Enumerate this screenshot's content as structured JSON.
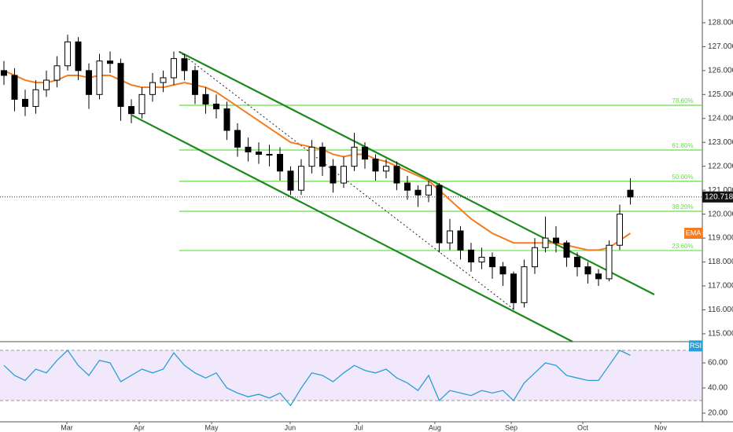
{
  "chart_data": {
    "type": "candlestick",
    "xlim": [
      -0.37,
      65.78
    ],
    "xticks": [
      {
        "value": 5.93,
        "label": "Mar"
      },
      {
        "value": 12.74,
        "label": "Apr"
      },
      {
        "value": 19.56,
        "label": "May"
      },
      {
        "value": 26.96,
        "label": "Jun"
      },
      {
        "value": 33.41,
        "label": "Jul"
      },
      {
        "value": 40.59,
        "label": "Aug"
      },
      {
        "value": 47.78,
        "label": "Sep"
      },
      {
        "value": 54.52,
        "label": "Oct"
      },
      {
        "value": 61.85,
        "label": "Nov"
      }
    ],
    "ylim": [
      114.67,
      128.95
    ],
    "yticks": [
      {
        "value": 115,
        "label": "115.000"
      },
      {
        "value": 116,
        "label": "116.000"
      },
      {
        "value": 117,
        "label": "117.000"
      },
      {
        "value": 118,
        "label": "118.000"
      },
      {
        "value": 119,
        "label": "119.000"
      },
      {
        "value": 120,
        "label": "120.000"
      },
      {
        "value": 121,
        "label": "121.000"
      },
      {
        "value": 122,
        "label": "122.000"
      },
      {
        "value": 123,
        "label": "123.000"
      },
      {
        "value": 124,
        "label": "124.000"
      },
      {
        "value": 125,
        "label": "125.000"
      },
      {
        "value": 126,
        "label": "126.000"
      },
      {
        "value": 127,
        "label": "127.000"
      },
      {
        "value": 128,
        "label": "128.000"
      }
    ],
    "open": [
      126.0,
      125.8,
      124.8,
      124.5,
      125.2,
      125.6,
      126.2,
      127.2,
      126.0,
      125.0,
      126.4,
      126.3,
      124.5,
      124.2,
      125.0,
      125.5,
      125.7,
      126.5,
      126.0,
      125.0,
      124.6,
      124.4,
      123.5,
      122.8,
      122.6,
      122.5,
      122.5,
      121.8,
      121.0,
      122.0,
      122.8,
      122.0,
      121.3,
      122.0,
      122.8,
      122.3,
      121.8,
      122.0,
      121.3,
      121.0,
      120.8,
      121.2,
      118.8,
      119.3,
      118.5,
      118.0,
      118.2,
      117.8,
      117.5,
      116.3,
      117.8,
      118.6,
      119.0,
      118.8,
      118.2,
      117.8,
      117.5,
      117.3,
      118.7,
      121.0
    ],
    "high": [
      126.4,
      126.1,
      125.2,
      125.6,
      126.0,
      126.6,
      127.5,
      127.4,
      126.3,
      126.7,
      126.8,
      126.5,
      124.8,
      125.3,
      125.9,
      126.0,
      126.8,
      126.7,
      126.2,
      125.3,
      125.0,
      124.7,
      123.8,
      123.2,
      123.0,
      122.9,
      122.8,
      122.0,
      122.3,
      123.1,
      123.0,
      122.3,
      122.4,
      123.4,
      123.0,
      122.5,
      122.3,
      122.2,
      121.6,
      121.2,
      121.4,
      121.3,
      119.8,
      119.5,
      118.8,
      118.6,
      118.4,
      118.0,
      117.6,
      118.1,
      119.0,
      119.9,
      119.5,
      118.9,
      118.4,
      118.0,
      117.7,
      118.9,
      120.4,
      121.5
    ],
    "low": [
      125.4,
      124.3,
      124.1,
      124.2,
      124.9,
      125.3,
      126.0,
      125.6,
      124.4,
      124.8,
      125.9,
      123.9,
      123.8,
      124.0,
      124.7,
      125.1,
      125.4,
      125.6,
      124.6,
      124.2,
      124.0,
      123.1,
      122.4,
      122.2,
      122.1,
      122.0,
      121.4,
      120.8,
      120.8,
      121.7,
      121.6,
      120.9,
      121.1,
      121.8,
      121.9,
      121.4,
      121.5,
      121.0,
      120.6,
      120.3,
      120.5,
      118.4,
      118.5,
      118.1,
      117.6,
      117.7,
      117.3,
      117.0,
      116.0,
      116.1,
      117.5,
      118.4,
      118.4,
      117.8,
      117.4,
      117.1,
      117.0,
      117.2,
      118.5,
      120.4
    ],
    "close": [
      125.8,
      124.8,
      124.5,
      125.2,
      125.6,
      126.2,
      127.2,
      126.0,
      125.0,
      126.4,
      126.3,
      124.5,
      124.2,
      125.0,
      125.5,
      125.7,
      126.5,
      126.0,
      125.0,
      124.6,
      124.4,
      123.5,
      122.8,
      122.6,
      122.5,
      122.5,
      121.8,
      121.0,
      122.0,
      122.8,
      122.0,
      121.3,
      122.0,
      122.8,
      122.3,
      121.8,
      122.0,
      121.3,
      121.0,
      120.8,
      121.2,
      118.8,
      119.3,
      118.5,
      118.0,
      118.2,
      117.8,
      117.5,
      116.3,
      117.8,
      118.6,
      119.0,
      118.8,
      118.2,
      117.8,
      117.5,
      117.3,
      118.7,
      120.0,
      120.718
    ],
    "up_color": "#ffffff",
    "down_color": "#000000",
    "ema": {
      "name": "EMA",
      "color": "#f57c1f",
      "values": [
        126.0,
        125.8,
        125.6,
        125.5,
        125.5,
        125.6,
        125.8,
        125.8,
        125.7,
        125.8,
        125.8,
        125.6,
        125.4,
        125.3,
        125.3,
        125.3,
        125.4,
        125.5,
        125.4,
        125.3,
        125.1,
        124.8,
        124.5,
        124.2,
        123.9,
        123.6,
        123.3,
        123.0,
        122.9,
        122.8,
        122.7,
        122.5,
        122.4,
        122.5,
        122.5,
        122.3,
        122.2,
        122.0,
        121.8,
        121.6,
        121.4,
        121.0,
        120.6,
        120.2,
        119.8,
        119.5,
        119.2,
        119.0,
        118.8,
        118.8,
        118.8,
        118.8,
        118.8,
        118.7,
        118.6,
        118.5,
        118.5,
        118.6,
        118.9,
        119.2
      ]
    },
    "fib_color": "#66dd44",
    "fib_levels": [
      {
        "label": "78.60%",
        "price": 124.55
      },
      {
        "label": "61.80%",
        "price": 122.68
      },
      {
        "label": "50.00%",
        "price": 121.37
      },
      {
        "label": "38.20%",
        "price": 120.12
      },
      {
        "label": "23.60%",
        "price": 118.48
      }
    ],
    "trend_color": "#1b8a1b",
    "trendlines": [
      {
        "start": [
          16.5,
          126.79
        ],
        "end": [
          61.26,
          116.64
        ],
        "style": "solid"
      },
      {
        "start": [
          12.07,
          124.13
        ],
        "end": [
          53.56,
          114.67
        ],
        "style": "solid"
      },
      {
        "start": [
          16.5,
          126.79
        ],
        "end": [
          48.15,
          115.98
        ],
        "style": "dotted"
      }
    ],
    "rsi": {
      "name": "RSI",
      "color": "#2a9fd6",
      "ylim": [
        13.1,
        76.25
      ],
      "yticks": [
        {
          "value": 20,
          "label": "20.00"
        },
        {
          "value": 40,
          "label": "40.00"
        },
        {
          "value": 60,
          "label": "60.00"
        }
      ],
      "bands": [
        30,
        70
      ],
      "band_color": "#f2e8fc",
      "values": [
        58,
        50,
        46,
        55,
        52,
        62,
        70,
        58,
        50,
        62,
        60,
        45,
        50,
        55,
        52,
        55,
        68,
        58,
        52,
        48,
        52,
        40,
        36,
        33,
        35,
        32,
        36,
        26,
        40,
        52,
        50,
        45,
        52,
        58,
        54,
        52,
        55,
        48,
        44,
        38,
        50,
        30,
        38,
        36,
        34,
        38,
        36,
        38,
        30,
        44,
        52,
        60,
        58,
        50,
        48,
        46,
        46,
        58,
        70,
        66
      ]
    }
  }
}
